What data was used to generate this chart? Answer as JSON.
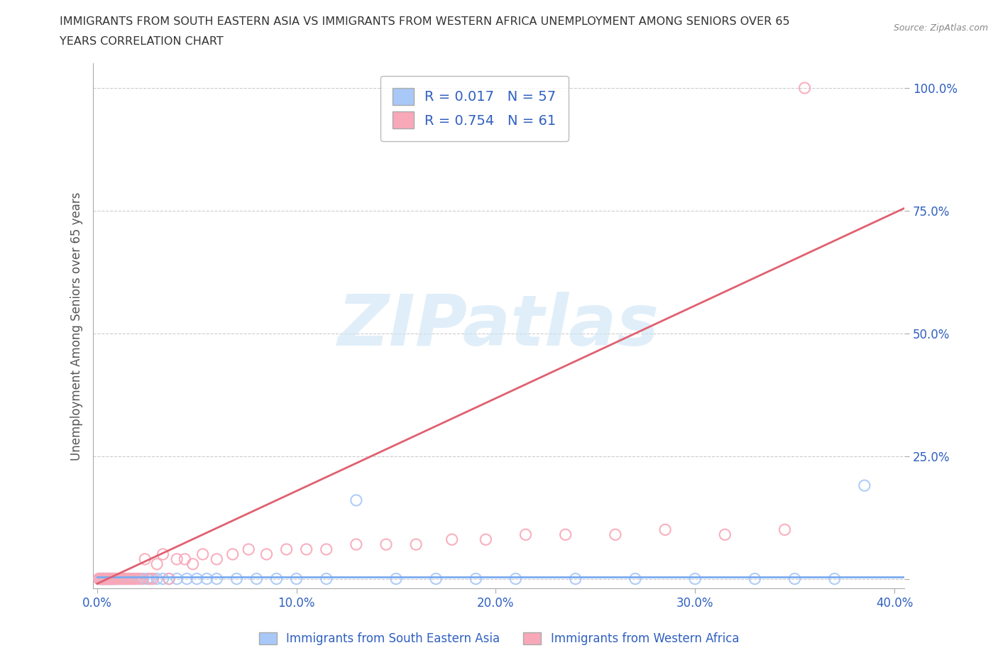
{
  "title_line1": "IMMIGRANTS FROM SOUTH EASTERN ASIA VS IMMIGRANTS FROM WESTERN AFRICA UNEMPLOYMENT AMONG SENIORS OVER 65",
  "title_line2": "YEARS CORRELATION CHART",
  "source_text": "Source: ZipAtlas.com",
  "ylabel": "Unemployment Among Seniors over 65 years",
  "xlim": [
    -0.002,
    0.405
  ],
  "ylim": [
    -0.02,
    1.05
  ],
  "xticks": [
    0.0,
    0.1,
    0.2,
    0.3,
    0.4
  ],
  "yticks": [
    0.0,
    0.25,
    0.5,
    0.75,
    1.0
  ],
  "xticklabels": [
    "0.0%",
    "10.0%",
    "20.0%",
    "30.0%",
    "40.0%"
  ],
  "yticklabels": [
    "",
    "25.0%",
    "50.0%",
    "75.0%",
    "100.0%"
  ],
  "color_sea": "#a8c8f8",
  "color_waf": "#f8a8b8",
  "color_sea_line": "#7aabf0",
  "color_waf_line": "#e06070",
  "legend_color": "#3060c0",
  "R_sea": 0.017,
  "N_sea": 57,
  "R_waf": 0.754,
  "N_waf": 61,
  "watermark": "ZIPatlas",
  "background_color": "#ffffff",
  "grid_color": "#cccccc",
  "tick_color": "#3060c0",
  "axis_label_color": "#555555",
  "title_color": "#333333",
  "sea_x": [
    0.001,
    0.001,
    0.002,
    0.002,
    0.003,
    0.003,
    0.003,
    0.004,
    0.004,
    0.005,
    0.005,
    0.006,
    0.006,
    0.007,
    0.007,
    0.008,
    0.008,
    0.009,
    0.009,
    0.01,
    0.011,
    0.012,
    0.013,
    0.014,
    0.015,
    0.016,
    0.017,
    0.019,
    0.021,
    0.023,
    0.025,
    0.027,
    0.03,
    0.033,
    0.036,
    0.04,
    0.045,
    0.05,
    0.055,
    0.06,
    0.07,
    0.08,
    0.09,
    0.1,
    0.115,
    0.13,
    0.15,
    0.17,
    0.19,
    0.21,
    0.24,
    0.27,
    0.3,
    0.33,
    0.35,
    0.37,
    0.385
  ],
  "sea_y": [
    0.0,
    0.0,
    0.0,
    0.0,
    0.0,
    0.0,
    0.0,
    0.0,
    0.0,
    0.0,
    0.0,
    0.0,
    0.0,
    0.0,
    0.0,
    0.0,
    0.0,
    0.0,
    0.0,
    0.0,
    0.0,
    0.0,
    0.0,
    0.0,
    0.0,
    0.0,
    0.0,
    0.0,
    0.0,
    0.0,
    0.0,
    0.0,
    0.0,
    0.0,
    0.0,
    0.0,
    0.0,
    0.0,
    0.0,
    0.0,
    0.0,
    0.0,
    0.0,
    0.0,
    0.0,
    0.16,
    0.0,
    0.0,
    0.0,
    0.0,
    0.0,
    0.0,
    0.0,
    0.0,
    0.0,
    0.0,
    0.19
  ],
  "waf_x": [
    0.001,
    0.001,
    0.002,
    0.002,
    0.003,
    0.003,
    0.003,
    0.004,
    0.004,
    0.005,
    0.005,
    0.006,
    0.006,
    0.006,
    0.007,
    0.007,
    0.008,
    0.008,
    0.009,
    0.009,
    0.01,
    0.011,
    0.012,
    0.013,
    0.014,
    0.015,
    0.016,
    0.017,
    0.018,
    0.019,
    0.02,
    0.022,
    0.024,
    0.026,
    0.028,
    0.03,
    0.033,
    0.036,
    0.04,
    0.044,
    0.048,
    0.053,
    0.06,
    0.068,
    0.076,
    0.085,
    0.095,
    0.105,
    0.115,
    0.13,
    0.145,
    0.16,
    0.178,
    0.195,
    0.215,
    0.235,
    0.26,
    0.285,
    0.315,
    0.345,
    0.355
  ],
  "waf_y": [
    0.0,
    0.0,
    0.0,
    0.0,
    0.0,
    0.0,
    0.0,
    0.0,
    0.0,
    0.0,
    0.0,
    0.0,
    0.0,
    0.0,
    0.0,
    0.0,
    0.0,
    0.0,
    0.0,
    0.0,
    0.0,
    0.0,
    0.0,
    0.0,
    0.0,
    0.0,
    0.0,
    0.0,
    0.0,
    0.0,
    0.0,
    0.0,
    0.04,
    0.0,
    0.0,
    0.03,
    0.05,
    0.0,
    0.04,
    0.04,
    0.03,
    0.05,
    0.04,
    0.05,
    0.06,
    0.05,
    0.06,
    0.06,
    0.06,
    0.07,
    0.07,
    0.07,
    0.08,
    0.08,
    0.09,
    0.09,
    0.09,
    0.1,
    0.09,
    0.1,
    1.0
  ],
  "sea_trend_x": [
    0.0,
    0.405
  ],
  "sea_trend_y": [
    0.003,
    0.003
  ],
  "waf_trend_x": [
    0.0,
    0.405
  ],
  "waf_trend_y": [
    -0.01,
    0.755
  ]
}
